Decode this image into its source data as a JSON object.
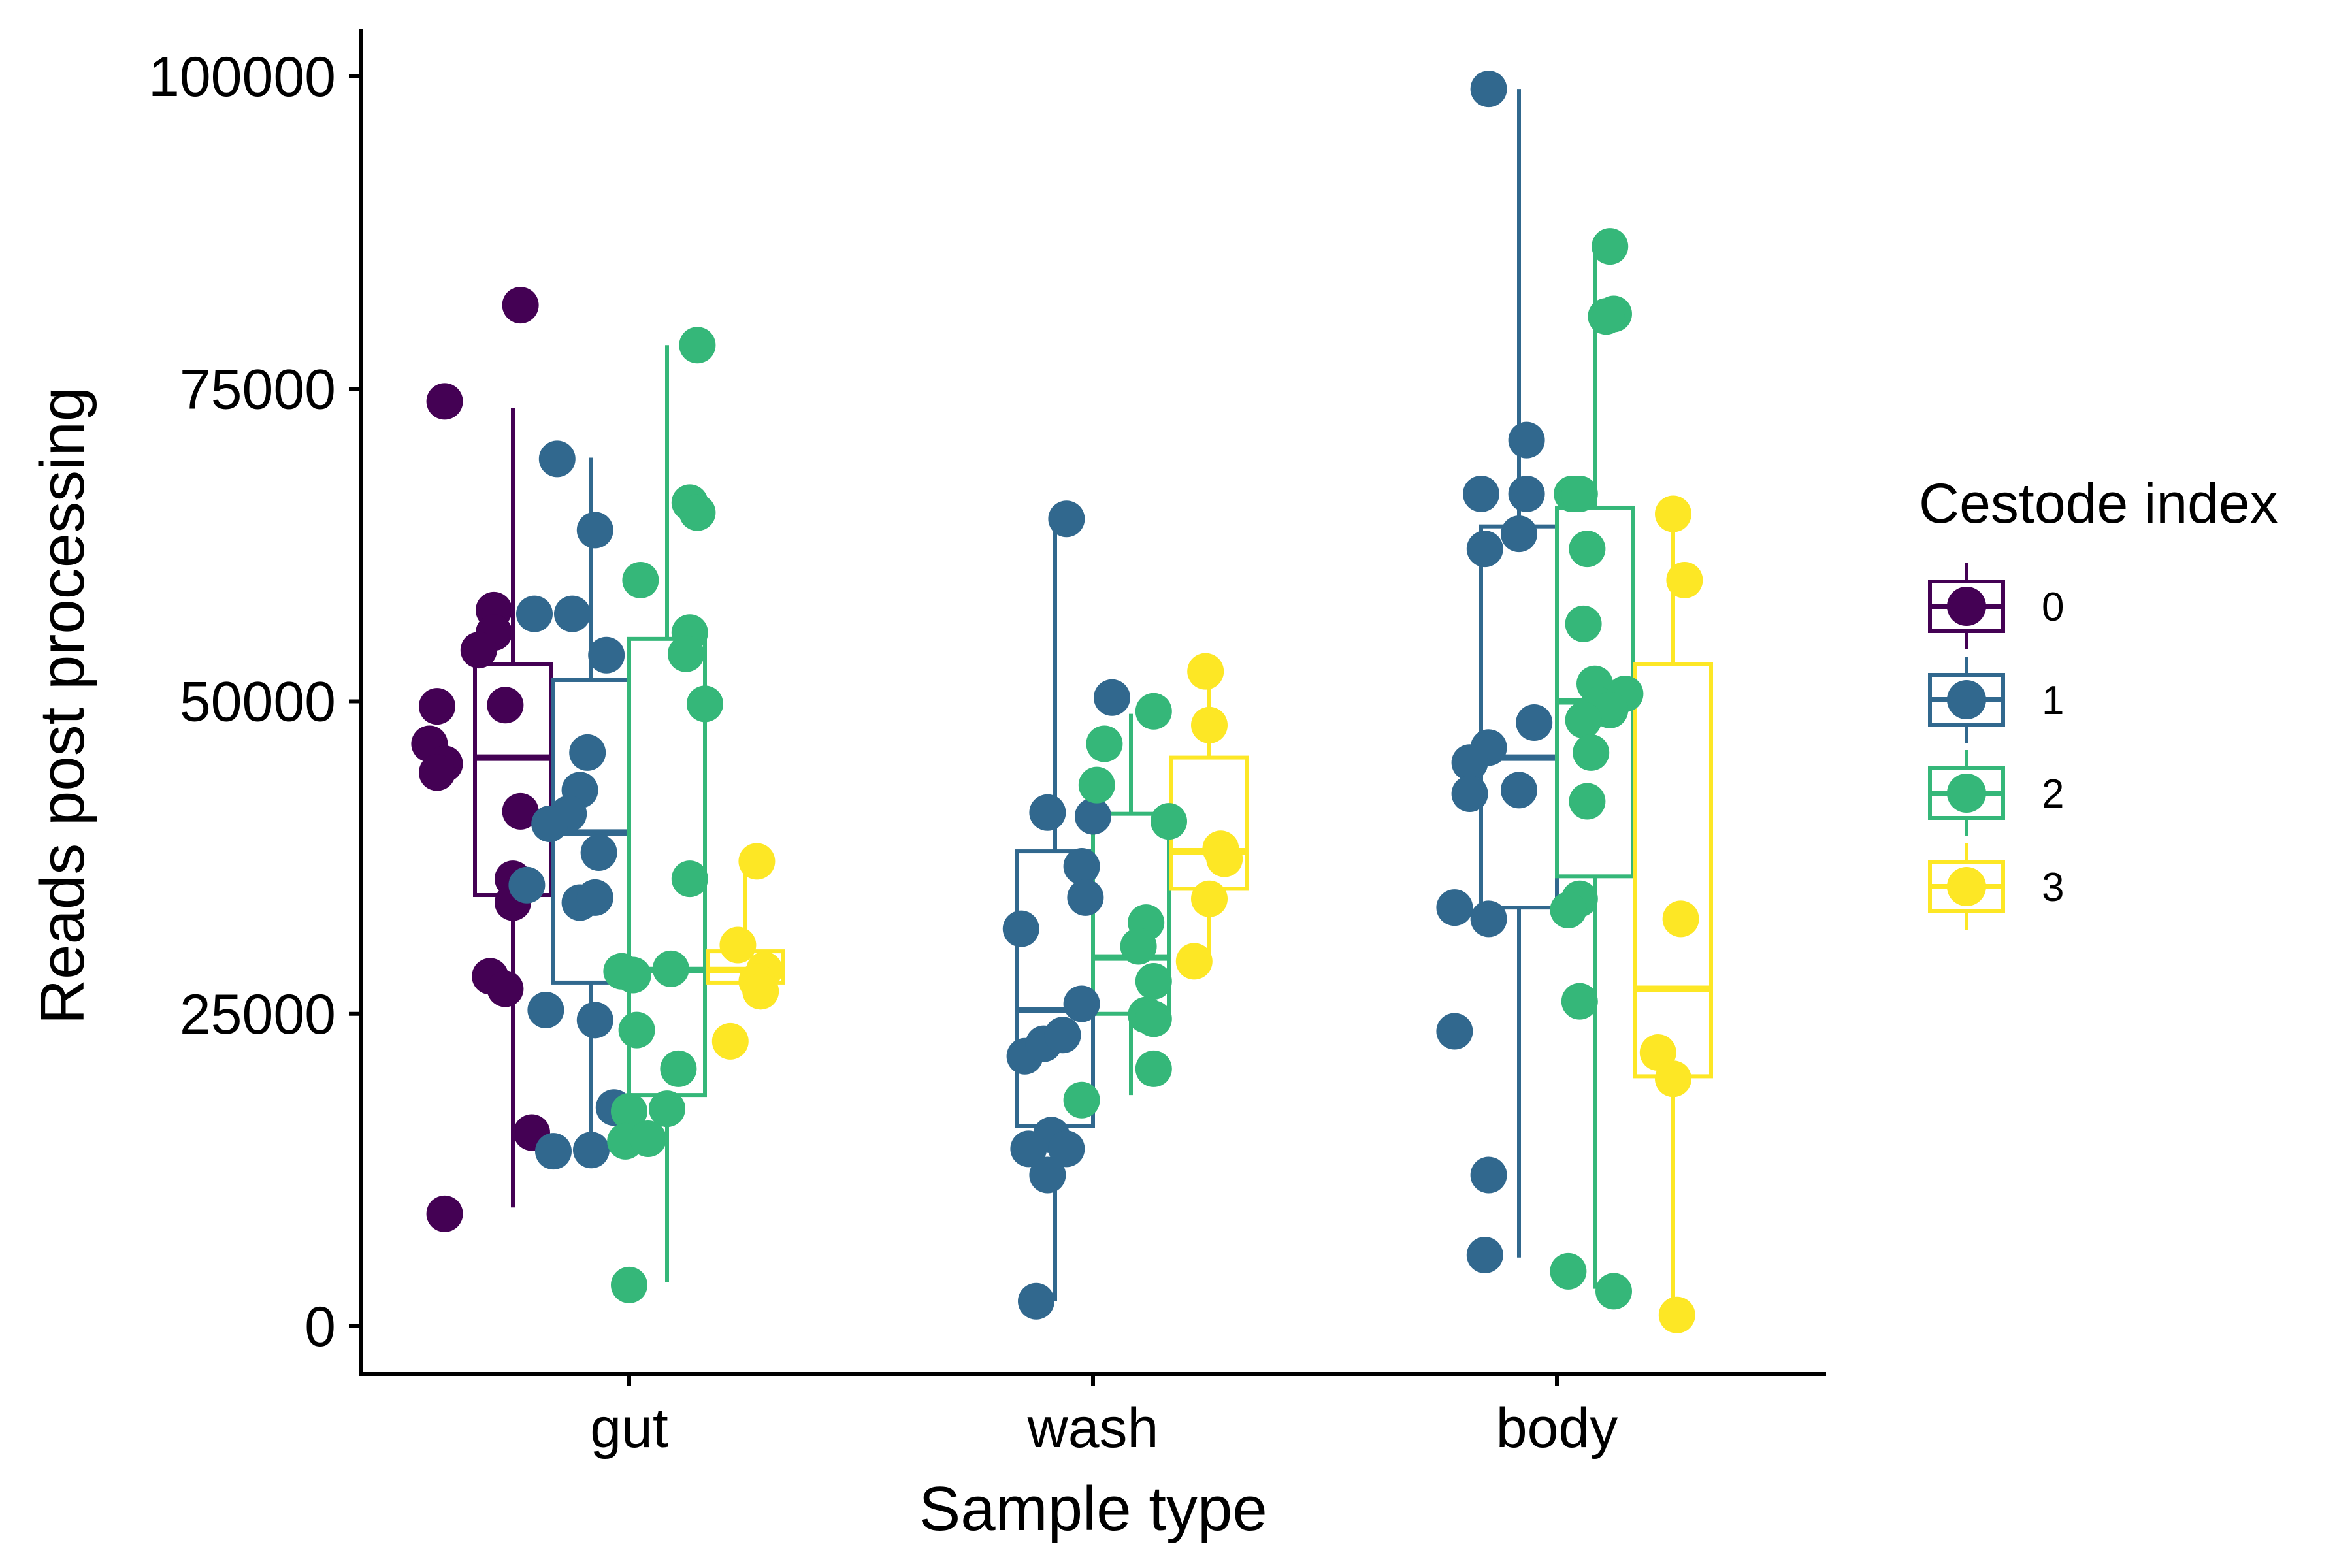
{
  "chart_data": {
    "type": "boxplot",
    "xlabel": "Sample type",
    "ylabel": "Reads post processing",
    "ylim": [
      -4000,
      105000
    ],
    "y_ticks": [
      0,
      25000,
      50000,
      75000,
      100000
    ],
    "y_tick_labels": [
      "0",
      "25000",
      "50000",
      "75000",
      "100000"
    ],
    "categories": [
      "gut",
      "wash",
      "body"
    ],
    "legend": {
      "title": "Cestode index",
      "position": "right",
      "entries": [
        {
          "label": "0",
          "color": "#440154"
        },
        {
          "label": "1",
          "color": "#31688E"
        },
        {
          "label": "2",
          "color": "#35B779"
        },
        {
          "label": "3",
          "color": "#FDE725"
        }
      ]
    },
    "grid": false,
    "series": [
      {
        "name": "0",
        "color": "#440154",
        "groups": [
          {
            "category": "gut",
            "box": {
              "lower": 9500,
              "q1": 34500,
              "median": 45500,
              "q3": 53000,
              "upper": 73500
            },
            "points": [
              [
                -0.18,
                9000
              ],
              [
                -0.18,
                74000
              ],
              [
                0.02,
                81700
              ],
              [
                -0.05,
                57300
              ],
              [
                -0.05,
                55500
              ],
              [
                -0.09,
                54100
              ],
              [
                -0.2,
                49600
              ],
              [
                -0.02,
                49700
              ],
              [
                -0.22,
                46600
              ],
              [
                -0.18,
                45000
              ],
              [
                -0.2,
                44300
              ],
              [
                0.02,
                41200
              ],
              [
                0.0,
                35800
              ],
              [
                0.0,
                33900
              ],
              [
                -0.06,
                28000
              ],
              [
                -0.02,
                27000
              ],
              [
                0.05,
                15500
              ]
            ]
          },
          {
            "category": "wash",
            "box": null,
            "points": []
          },
          {
            "category": "body",
            "box": null,
            "points": []
          }
        ]
      },
      {
        "name": "1",
        "color": "#31688E",
        "groups": [
          {
            "category": "gut",
            "box": {
              "lower": 14000,
              "q1": 27500,
              "median": 39500,
              "q3": 51700,
              "upper": 69500
            },
            "points": [
              [
                -0.09,
                69400
              ],
              [
                0.01,
                63700
              ],
              [
                -0.15,
                57000
              ],
              [
                -0.05,
                57000
              ],
              [
                0.04,
                53700
              ],
              [
                -0.01,
                45900
              ],
              [
                -0.03,
                42900
              ],
              [
                -0.06,
                41000
              ],
              [
                -0.11,
                40200
              ],
              [
                0.02,
                37900
              ],
              [
                -0.17,
                35300
              ],
              [
                -0.03,
                33900
              ],
              [
                0.01,
                34300
              ],
              [
                -0.12,
                25300
              ],
              [
                0.01,
                24500
              ],
              [
                0.06,
                17500
              ],
              [
                -0.1,
                14000
              ],
              [
                0.0,
                14100
              ]
            ]
          },
          {
            "category": "wash",
            "box": {
              "lower": 2000,
              "q1": 16000,
              "median": 25300,
              "q3": 38000,
              "upper": 64500
            },
            "points": [
              [
                0.03,
                64600
              ],
              [
                0.15,
                50300
              ],
              [
                -0.02,
                41100
              ],
              [
                0.1,
                40800
              ],
              [
                0.07,
                36800
              ],
              [
                0.08,
                34300
              ],
              [
                -0.09,
                31800
              ],
              [
                -0.08,
                21600
              ],
              [
                -0.03,
                22600
              ],
              [
                0.02,
                23300
              ],
              [
                0.07,
                25800
              ],
              [
                -0.01,
                15300
              ],
              [
                -0.07,
                14200
              ],
              [
                0.03,
                14200
              ],
              [
                -0.02,
                12100
              ],
              [
                -0.05,
                2000
              ]
            ]
          },
          {
            "category": "body",
            "box": {
              "lower": 5500,
              "q1": 33500,
              "median": 45500,
              "q3": 64000,
              "upper": 99000
            },
            "points": [
              [
                -0.08,
                99000
              ],
              [
                0.02,
                70900
              ],
              [
                -0.1,
                66600
              ],
              [
                0.02,
                66600
              ],
              [
                -0.09,
                62200
              ],
              [
                0.0,
                63400
              ],
              [
                0.04,
                48300
              ],
              [
                -0.08,
                46300
              ],
              [
                -0.13,
                45100
              ],
              [
                -0.13,
                42600
              ],
              [
                0.0,
                42900
              ],
              [
                -0.17,
                33500
              ],
              [
                -0.08,
                32600
              ],
              [
                -0.17,
                23600
              ],
              [
                -0.08,
                12100
              ],
              [
                -0.09,
                5700
              ]
            ]
          },
          {
            "category": "wash",
            "dup": true
          }
        ]
      },
      {
        "name": "2",
        "color": "#35B779",
        "groups": [
          {
            "category": "gut",
            "box": {
              "lower": 3500,
              "q1": 18500,
              "median": 28500,
              "q3": 55000,
              "upper": 78500
            },
            "points": [
              [
                0.08,
                78500
              ],
              [
                0.06,
                65900
              ],
              [
                0.08,
                65100
              ],
              [
                -0.07,
                59700
              ],
              [
                0.06,
                55500
              ],
              [
                0.05,
                53800
              ],
              [
                0.1,
                49800
              ],
              [
                0.06,
                35800
              ],
              [
                -0.12,
                28400
              ],
              [
                -0.09,
                28100
              ],
              [
                0.01,
                28600
              ],
              [
                -0.08,
                23700
              ],
              [
                0.03,
                20600
              ],
              [
                -0.1,
                17200
              ],
              [
                0.0,
                17400
              ],
              [
                -0.11,
                14800
              ],
              [
                -0.05,
                15000
              ],
              [
                -0.1,
                3300
              ]
            ]
          },
          {
            "category": "wash",
            "box": {
              "lower": 18500,
              "q1": 25000,
              "median": 29500,
              "q3": 41000,
              "upper": 49000
            },
            "points": [
              [
                0.06,
                49200
              ],
              [
                -0.07,
                46600
              ],
              [
                -0.09,
                43300
              ],
              [
                0.1,
                40400
              ],
              [
                0.04,
                32300
              ],
              [
                0.02,
                30400
              ],
              [
                0.06,
                27600
              ],
              [
                0.04,
                24900
              ],
              [
                0.06,
                24600
              ],
              [
                0.06,
                20600
              ],
              [
                -0.13,
                18100
              ]
            ]
          },
          {
            "category": "body",
            "box": {
              "lower": 3000,
              "q1": 36000,
              "median": 50000,
              "q3": 65500,
              "upper": 86500
            },
            "points": [
              [
                0.04,
                86400
              ],
              [
                0.05,
                81000
              ],
              [
                0.03,
                80800
              ],
              [
                -0.06,
                66600
              ],
              [
                -0.04,
                66600
              ],
              [
                -0.02,
                62200
              ],
              [
                -0.03,
                56200
              ],
              [
                0.0,
                51400
              ],
              [
                0.01,
                49700
              ],
              [
                0.08,
                50600
              ],
              [
                0.04,
                49300
              ],
              [
                -0.03,
                48500
              ],
              [
                -0.01,
                45900
              ],
              [
                -0.02,
                42000
              ],
              [
                -0.04,
                34200
              ],
              [
                -0.07,
                33300
              ],
              [
                -0.04,
                26000
              ],
              [
                -0.07,
                4400
              ],
              [
                0.05,
                2800
              ]
            ]
          }
        ]
      },
      {
        "name": "3",
        "color": "#FDE725",
        "groups": [
          {
            "category": "gut",
            "box": {
              "lower": 26500,
              "q1": 27500,
              "median": 28500,
              "q3": 30000,
              "upper": 37500
            },
            "points": [
              [
                0.03,
                37200
              ],
              [
                -0.02,
                30500
              ],
              [
                0.05,
                28500
              ],
              [
                0.03,
                27600
              ],
              [
                0.04,
                26800
              ],
              [
                -0.04,
                22800
              ]
            ]
          },
          {
            "category": "wash",
            "box": {
              "lower": 29500,
              "q1": 35000,
              "median": 38000,
              "q3": 45500,
              "upper": 52500
            },
            "points": [
              [
                -0.01,
                52400
              ],
              [
                0.0,
                48100
              ],
              [
                0.03,
                38200
              ],
              [
                0.04,
                37400
              ],
              [
                0.0,
                34200
              ],
              [
                -0.04,
                29200
              ]
            ]
          },
          {
            "category": "body",
            "box": {
              "lower": 1000,
              "q1": 20000,
              "median": 27000,
              "q3": 53000,
              "upper": 65000
            },
            "points": [
              [
                0.0,
                65000
              ],
              [
                0.03,
                59700
              ],
              [
                0.02,
                32600
              ],
              [
                -0.04,
                21900
              ],
              [
                0.0,
                19800
              ],
              [
                0.01,
                900
              ]
            ]
          }
        ]
      }
    ]
  }
}
